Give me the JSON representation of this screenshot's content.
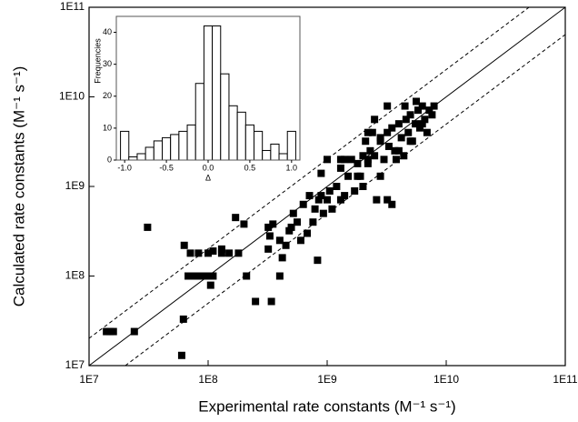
{
  "chart_data": [
    {
      "type": "scatter",
      "xlabel": "Experimental rate constants (M⁻¹ s⁻¹)",
      "ylabel": "Calculated rate constants (M⁻¹ s⁻¹)",
      "log_x": true,
      "log_y": true,
      "color": "#000000",
      "xlim": [
        10000000.0,
        100000000000.0
      ],
      "ylim": [
        10000000.0,
        100000000000.0
      ],
      "xticks": [
        {
          "value": 10000000.0,
          "label": "1E7"
        },
        {
          "value": 100000000.0,
          "label": "1E8"
        },
        {
          "value": 1000000000.0,
          "label": "1E9"
        },
        {
          "value": 10000000000.0,
          "label": "1E10"
        },
        {
          "value": 100000000000.0,
          "label": "1E11"
        }
      ],
      "yticks": [
        {
          "value": 10000000.0,
          "label": "1E7"
        },
        {
          "value": 100000000.0,
          "label": "1E8"
        },
        {
          "value": 1000000000.0,
          "label": "1E9"
        },
        {
          "value": 10000000000.0,
          "label": "1E10"
        },
        {
          "value": 100000000000.0,
          "label": "1E11"
        }
      ],
      "x": [
        14000000.0,
        15000000.0,
        16000000.0,
        24000000.0,
        31000000.0,
        60000000.0,
        62000000.0,
        63000000.0,
        68000000.0,
        72000000.0,
        79000000.0,
        89000000.0,
        100000000.0,
        105000000.0,
        110000000.0,
        71000000.0,
        83000000.0,
        100000000.0,
        110000000.0,
        130000000.0,
        130000000.0,
        150000000.0,
        170000000.0,
        210000000.0,
        180000000.0,
        250000000.0,
        340000000.0,
        320000000.0,
        330000000.0,
        350000000.0,
        400000000.0,
        420000000.0,
        450000000.0,
        500000000.0,
        520000000.0,
        560000000.0,
        600000000.0,
        630000000.0,
        680000000.0,
        710000000.0,
        760000000.0,
        790000000.0,
        830000000.0,
        850000000.0,
        890000000.0,
        930000000.0,
        1000000000.0,
        1050000000.0,
        1100000000.0,
        1200000000.0,
        1300000000.0,
        1300000000.0,
        1400000000.0,
        1500000000.0,
        1600000000.0,
        1700000000.0,
        1800000000.0,
        1900000000.0,
        2000000000.0,
        2100000000.0,
        2200000000.0,
        2300000000.0,
        2400000000.0,
        2500000000.0,
        2600000000.0,
        2800000000.0,
        3000000000.0,
        3200000000.0,
        3300000000.0,
        3500000000.0,
        3700000000.0,
        4000000000.0,
        4200000000.0,
        4400000000.0,
        4600000000.0,
        4800000000.0,
        5000000000.0,
        5200000000.0,
        5500000000.0,
        5800000000.0,
        6000000000.0,
        6300000000.0,
        6600000000.0,
        6900000000.0,
        7200000000.0,
        7600000000.0,
        7900000000.0,
        3200000000.0,
        3500000000.0,
        1300000000.0,
        1400000000.0,
        890000000.0,
        1000000000.0,
        2500000000.0,
        4000000000.0,
        2800000000.0,
        2000000000.0,
        400000000.0,
        480000000.0,
        320000000.0,
        200000000.0,
        1800000000.0,
        2200000000.0,
        3200000000.0,
        4500000000.0,
        5600000000.0,
        6300000000.0,
        5000000000.0,
        3800000000.0,
        2800000000.0,
        2200000000.0
      ],
      "y": [
        24000000.0,
        24000000.0,
        24000000.0,
        24000000.0,
        350000000.0,
        13000000.0,
        33000000.0,
        220000000.0,
        100000000.0,
        100000000.0,
        100000000.0,
        100000000.0,
        100000000.0,
        79000000.0,
        100000000.0,
        180000000.0,
        180000000.0,
        180000000.0,
        190000000.0,
        180000000.0,
        200000000.0,
        180000000.0,
        450000000.0,
        100000000.0,
        180000000.0,
        52000000.0,
        52000000.0,
        200000000.0,
        280000000.0,
        380000000.0,
        250000000.0,
        160000000.0,
        220000000.0,
        350000000.0,
        500000000.0,
        400000000.0,
        250000000.0,
        630000000.0,
        300000000.0,
        790000000.0,
        400000000.0,
        560000000.0,
        150000000.0,
        710000000.0,
        790000000.0,
        500000000.0,
        710000000.0,
        890000000.0,
        560000000.0,
        1000000000.0,
        710000000.0,
        1600000000.0,
        790000000.0,
        1300000000.0,
        2000000000.0,
        890000000.0,
        1800000000.0,
        1300000000.0,
        2200000000.0,
        3200000000.0,
        1800000000.0,
        2500000000.0,
        4000000000.0,
        2200000000.0,
        710000000.0,
        3200000000.0,
        2000000000.0,
        4000000000.0,
        2800000000.0,
        4500000000.0,
        2500000000.0,
        5000000000.0,
        3500000000.0,
        2200000000.0,
        5600000000.0,
        4000000000.0,
        6300000000.0,
        3200000000.0,
        5000000000.0,
        7100000000.0,
        4500000000.0,
        7900000000.0,
        5600000000.0,
        4000000000.0,
        7100000000.0,
        6300000000.0,
        7900000000.0,
        710000000.0,
        630000000.0,
        2000000000.0,
        2000000000.0,
        1400000000.0,
        2000000000.0,
        5600000000.0,
        2500000000.0,
        1300000000.0,
        1000000000.0,
        100000000.0,
        320000000.0,
        350000000.0,
        380000000.0,
        1300000000.0,
        4000000000.0,
        7900000000.0,
        7900000000.0,
        8900000000.0,
        5000000000.0,
        3200000000.0,
        2000000000.0,
        3500000000.0,
        2000000000.0
      ]
    },
    {
      "type": "histogram",
      "xlabel": "Δ",
      "ylabel": "Frequencies",
      "color": "#ffffff",
      "bins": [
        -1.05,
        -0.95,
        -0.85,
        -0.75,
        -0.65,
        -0.55,
        -0.45,
        -0.35,
        -0.25,
        -0.15,
        -0.05,
        0.05,
        0.15,
        0.25,
        0.35,
        0.45,
        0.55,
        0.65,
        0.75,
        0.85,
        0.95,
        1.05
      ],
      "values": [
        9,
        1,
        2,
        4,
        6,
        7,
        8,
        9,
        11,
        24,
        42,
        42,
        27,
        17,
        15,
        11,
        9,
        3,
        5,
        2,
        9
      ],
      "xlim": [
        -1.1,
        1.1
      ],
      "ylim": [
        0,
        45
      ],
      "xticks": [
        {
          "value": -1,
          "label": "-1.0"
        },
        -0.5,
        {
          "value": 0,
          "label": "0.0"
        },
        0.5,
        {
          "value": 1,
          "label": "1.0"
        }
      ],
      "yticks": [
        0,
        10,
        20,
        30,
        40
      ]
    }
  ]
}
